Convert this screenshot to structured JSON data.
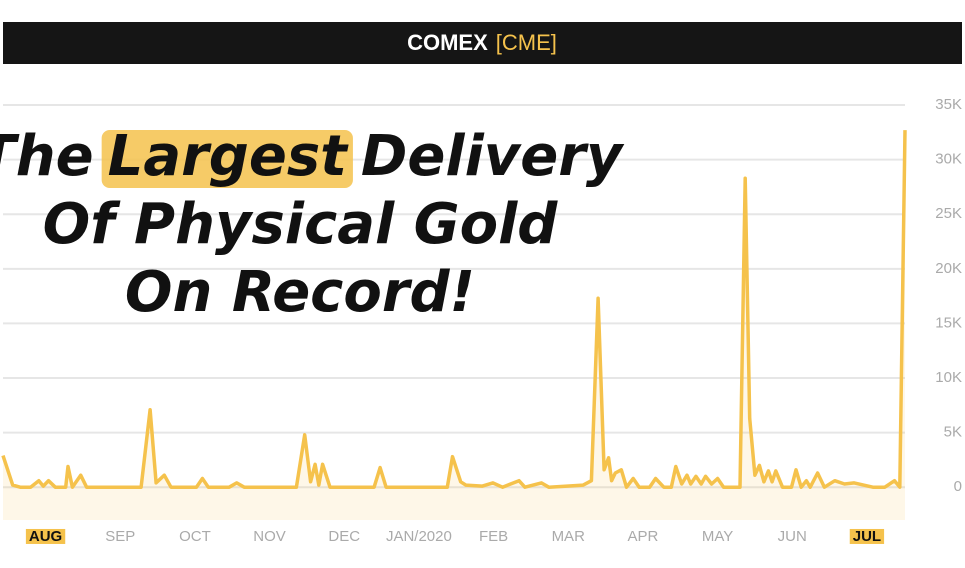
{
  "chart_data": {
    "type": "line",
    "title": "COMEX",
    "subtitle": "[CME]",
    "annotation": [
      [
        "The",
        "Largest",
        "Delivery"
      ],
      [
        "Of Physical Gold"
      ],
      [
        "On Record!"
      ]
    ],
    "x": [
      -0.57,
      -0.44,
      -0.34,
      -0.2,
      -0.09,
      -0.03,
      0.04,
      0.13,
      0.27,
      0.3,
      0.36,
      0.47,
      0.55,
      1.28,
      1.4,
      1.48,
      1.59,
      1.68,
      2.02,
      2.1,
      2.18,
      2.46,
      2.56,
      2.66,
      3.36,
      3.47,
      3.55,
      3.61,
      3.66,
      3.71,
      3.81,
      4.4,
      4.48,
      4.56,
      5.38,
      5.45,
      5.56,
      5.63,
      5.85,
      5.99,
      6.12,
      6.34,
      6.42,
      6.64,
      6.74,
      7.2,
      7.31,
      7.4,
      7.48,
      7.54,
      7.58,
      7.63,
      7.71,
      7.78,
      7.87,
      7.95,
      8.09,
      8.17,
      8.28,
      8.38,
      8.44,
      8.52,
      8.59,
      8.64,
      8.71,
      8.78,
      8.84,
      8.92,
      9.0,
      9.08,
      9.3,
      9.37,
      9.43,
      9.5,
      9.56,
      9.62,
      9.68,
      9.73,
      9.78,
      9.87,
      9.99,
      10.05,
      10.12,
      10.19,
      10.24,
      10.34,
      10.43,
      10.57,
      10.7,
      10.83,
      11.08,
      11.24,
      11.37,
      11.44,
      11.51
    ],
    "series": [
      {
        "name": "COMEX",
        "color": "#f5c24c",
        "values": [
          2900,
          200,
          0,
          0,
          600,
          100,
          600,
          0,
          0,
          1900,
          0,
          1100,
          0,
          0,
          7100,
          400,
          1100,
          0,
          0,
          800,
          0,
          0,
          400,
          0,
          0,
          4800,
          500,
          2100,
          200,
          2100,
          0,
          0,
          1800,
          0,
          0,
          2800,
          500,
          200,
          100,
          400,
          0,
          600,
          0,
          400,
          0,
          200,
          600,
          17300,
          1600,
          2700,
          600,
          1300,
          1600,
          0,
          800,
          0,
          0,
          800,
          0,
          0,
          1900,
          300,
          1100,
          300,
          1000,
          300,
          1000,
          300,
          800,
          0,
          0,
          28300,
          6300,
          1100,
          2000,
          500,
          1500,
          500,
          1500,
          0,
          0,
          1600,
          0,
          600,
          0,
          1300,
          0,
          600,
          300,
          400,
          0,
          0,
          600,
          0,
          32700
        ]
      }
    ],
    "xlim": [
      -0.57,
      11.51
    ],
    "xticks": [
      {
        "value": 0,
        "label": "AUG"
      },
      {
        "value": 1,
        "label": "SEP"
      },
      {
        "value": 2,
        "label": "OCT"
      },
      {
        "value": 3,
        "label": "NOV"
      },
      {
        "value": 4,
        "label": "DEC"
      },
      {
        "value": 5,
        "label": "JAN/2020"
      },
      {
        "value": 6,
        "label": "FEB"
      },
      {
        "value": 7,
        "label": "MAR"
      },
      {
        "value": 8,
        "label": "APR"
      },
      {
        "value": 9,
        "label": "MAY"
      },
      {
        "value": 10,
        "label": "JUN"
      },
      {
        "value": 11,
        "label": "JUL"
      }
    ],
    "highlight_xticks": [
      0,
      11
    ],
    "ylim": [
      -3000,
      35000
    ],
    "yticks": [
      0,
      {
        "value": 5000,
        "label": "5K"
      },
      {
        "value": 10000,
        "label": "10K"
      },
      {
        "value": 15000,
        "label": "15K"
      },
      {
        "value": 20000,
        "label": "20K"
      },
      {
        "value": 25000,
        "label": "25K"
      },
      {
        "value": 30000,
        "label": "30K"
      },
      {
        "value": 35000,
        "label": "35K"
      }
    ],
    "grid": true
  }
}
